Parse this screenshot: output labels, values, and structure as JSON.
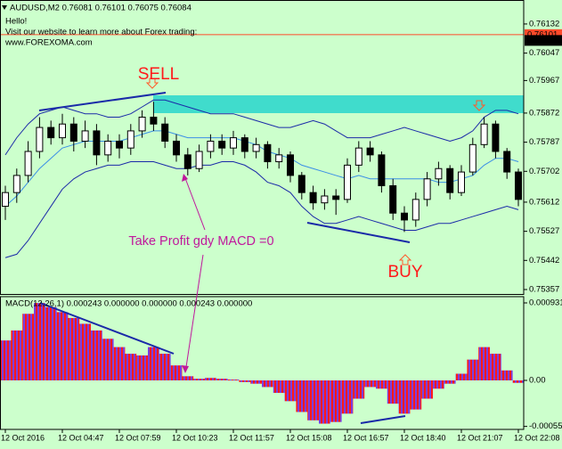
{
  "chart_data": [
    {
      "type": "candlestick",
      "title": "AUDUSD,M2  0.76081 0.76101 0.76075 0.76084",
      "notes": [
        "Hello!",
        "Visit our website to learn more about Forex trading:",
        "www.FOREXOMA.com"
      ],
      "annotations": [
        "SELL",
        "BUY",
        "Take Profit gdy MACD =0"
      ],
      "categories": [
        "12 Oct 2016",
        null,
        null,
        null,
        null,
        "12 Oct 04:47",
        null,
        null,
        null,
        null,
        "12 Oct 07:59",
        null,
        null,
        null,
        null,
        "12 Oct 10:23",
        null,
        null,
        null,
        null,
        "12 Oct 11:57",
        null,
        null,
        null,
        null,
        "12 Oct 15:08",
        null,
        null,
        null,
        null,
        "12 Oct 16:57",
        null,
        null,
        null,
        null,
        "12 Oct 18:40",
        null,
        null,
        null,
        null,
        "12 Oct 21:07",
        null,
        null,
        null,
        null,
        "12 Oct 22:08"
      ],
      "open": [
        0.756,
        0.7564,
        0.7569,
        0.7576,
        0.7583,
        0.758,
        0.7584,
        0.7579,
        0.7582,
        0.7575,
        0.7579,
        0.7577,
        0.7582,
        0.7586,
        0.7584,
        0.7579,
        0.7575,
        0.7571,
        0.7576,
        0.7579,
        0.7577,
        0.758,
        0.7576,
        0.7578,
        0.7573,
        0.7575,
        0.7569,
        0.7564,
        0.7561,
        0.7563,
        0.7562,
        0.7572,
        0.7577,
        0.7575,
        0.7566,
        0.7558,
        0.7556,
        0.7562,
        0.7568,
        0.7571,
        0.7564,
        0.757,
        0.7578,
        0.7584,
        0.7576,
        0.757
      ],
      "high": [
        0.7566,
        0.7571,
        0.7579,
        0.7586,
        0.7585,
        0.7587,
        0.7586,
        0.7585,
        0.7584,
        0.7581,
        0.7581,
        0.7584,
        0.7588,
        0.75905,
        0.7586,
        0.7581,
        0.7577,
        0.7578,
        0.7581,
        0.7581,
        0.7582,
        0.7581,
        0.758,
        0.7579,
        0.7577,
        0.7576,
        0.757,
        0.7566,
        0.7565,
        0.7565,
        0.7574,
        0.7579,
        0.7579,
        0.7576,
        0.7568,
        0.756,
        0.7564,
        0.757,
        0.7573,
        0.7572,
        0.7572,
        0.758,
        0.7586,
        0.7585,
        0.7577,
        0.7571
      ],
      "low": [
        0.7556,
        0.7561,
        0.7567,
        0.7574,
        0.7578,
        0.7578,
        0.7576,
        0.7577,
        0.7572,
        0.7573,
        0.7574,
        0.7575,
        0.758,
        0.7582,
        0.7577,
        0.7573,
        0.7569,
        0.757,
        0.7574,
        0.7575,
        0.7575,
        0.7574,
        0.7574,
        0.7571,
        0.7571,
        0.7567,
        0.7562,
        0.7559,
        0.7559,
        0.75575,
        0.7561,
        0.757,
        0.7573,
        0.7564,
        0.7556,
        0.75525,
        0.7554,
        0.756,
        0.7566,
        0.7562,
        0.7563,
        0.7569,
        0.7577,
        0.7574,
        0.7568,
        0.756
      ],
      "close": [
        0.7564,
        0.7569,
        0.7576,
        0.7583,
        0.758,
        0.7584,
        0.7579,
        0.7582,
        0.7575,
        0.7579,
        0.7577,
        0.7582,
        0.7586,
        0.7584,
        0.7579,
        0.7575,
        0.7571,
        0.7576,
        0.7579,
        0.7577,
        0.758,
        0.7576,
        0.7578,
        0.7573,
        0.7575,
        0.7569,
        0.7564,
        0.7561,
        0.7563,
        0.7562,
        0.7572,
        0.7577,
        0.7575,
        0.7566,
        0.7558,
        0.7556,
        0.7562,
        0.7568,
        0.7571,
        0.7564,
        0.757,
        0.7578,
        0.7584,
        0.7576,
        0.757,
        0.7562
      ],
      "series": [
        {
          "color": "#1a2aa8",
          "values": [
            0.7575,
            0.758,
            0.7584,
            0.7587,
            0.7588,
            0.7589,
            0.7588,
            0.7587,
            0.7587,
            0.7586,
            0.7586,
            0.7587,
            0.7589,
            0.7591,
            0.7591,
            0.759,
            0.7589,
            0.7588,
            0.7587,
            0.7587,
            0.7587,
            0.7586,
            0.7585,
            0.7584,
            0.7583,
            0.7583,
            0.7584,
            0.7585,
            0.7584,
            0.7582,
            0.758,
            0.758,
            0.758,
            0.7581,
            0.7582,
            0.7583,
            0.7582,
            0.7581,
            0.758,
            0.7579,
            0.758,
            0.7582,
            0.7586,
            0.7588,
            0.7588,
            0.7587
          ]
        },
        {
          "color": "#3a8ee6",
          "values": [
            0.756,
            0.7563,
            0.7567,
            0.7571,
            0.7574,
            0.7577,
            0.7578,
            0.7579,
            0.7579,
            0.7579,
            0.7579,
            0.758,
            0.7581,
            0.7582,
            0.7582,
            0.7581,
            0.758,
            0.758,
            0.758,
            0.758,
            0.758,
            0.7579,
            0.7578,
            0.7576,
            0.7575,
            0.7574,
            0.7572,
            0.7571,
            0.757,
            0.7569,
            0.7568,
            0.7569,
            0.7568,
            0.7568,
            0.7568,
            0.7568,
            0.7568,
            0.7568,
            0.7567,
            0.7567,
            0.7568,
            0.7569,
            0.7572,
            0.7574,
            0.7574,
            0.7573
          ]
        },
        {
          "color": "#1a2aa8",
          "values": [
            0.7545,
            0.7546,
            0.755,
            0.7555,
            0.756,
            0.7565,
            0.7568,
            0.757,
            0.7571,
            0.7572,
            0.7572,
            0.7573,
            0.7573,
            0.7573,
            0.7572,
            0.7571,
            0.7571,
            0.7572,
            0.7572,
            0.7573,
            0.7573,
            0.7572,
            0.757,
            0.7567,
            0.7566,
            0.7564,
            0.756,
            0.7557,
            0.7555,
            0.7555,
            0.7556,
            0.7557,
            0.7556,
            0.7555,
            0.7554,
            0.7553,
            0.7553,
            0.7554,
            0.7555,
            0.7555,
            0.7556,
            0.7557,
            0.7558,
            0.7559,
            0.756,
            0.7559
          ]
        }
      ],
      "price_labels": [
        {
          "value": 0.76101,
          "color": "#ff4a2a"
        },
        {
          "value": 0.76084,
          "color": "#000000"
        }
      ],
      "ylim": [
        0.75344,
        0.76202
      ],
      "yticks": [
        0.76132,
        0.76047,
        0.75967,
        0.75872,
        0.75787,
        0.75702,
        0.75612,
        0.75527,
        0.75442,
        0.75357
      ]
    },
    {
      "type": "bar",
      "title": "MACD(12,26,1) 0.000243 0.000000 0.000000 0.000243 0.000000",
      "values": [
        0.00048,
        0.0006,
        0.0008,
        0.00093,
        0.00088,
        0.00082,
        0.00075,
        0.00068,
        0.0006,
        0.0005,
        0.0004,
        0.00032,
        0.0003,
        0.0004,
        0.00032,
        0.00018,
        5e-05,
        2e-05,
        3e-05,
        2e-05,
        1e-05,
        -2e-05,
        -4e-05,
        -8e-05,
        -0.00015,
        -0.00025,
        -0.00038,
        -0.00048,
        -0.00052,
        -0.0005,
        -0.0004,
        -0.00022,
        -8e-05,
        -0.0001,
        -0.00028,
        -0.0004,
        -0.00035,
        -0.00022,
        -0.0001,
        -4e-05,
        8e-05,
        0.00025,
        0.0004,
        0.00032,
        0.00012,
        -3e-05
      ],
      "colors": [
        "#ff1a1a",
        "#7a3fe0"
      ],
      "ylim": [
        -0.000589,
        0.001006
      ],
      "yticks": [
        0.000931,
        {
          "value": 0,
          "label": "0.00"
        },
        -0.000553
      ]
    }
  ]
}
